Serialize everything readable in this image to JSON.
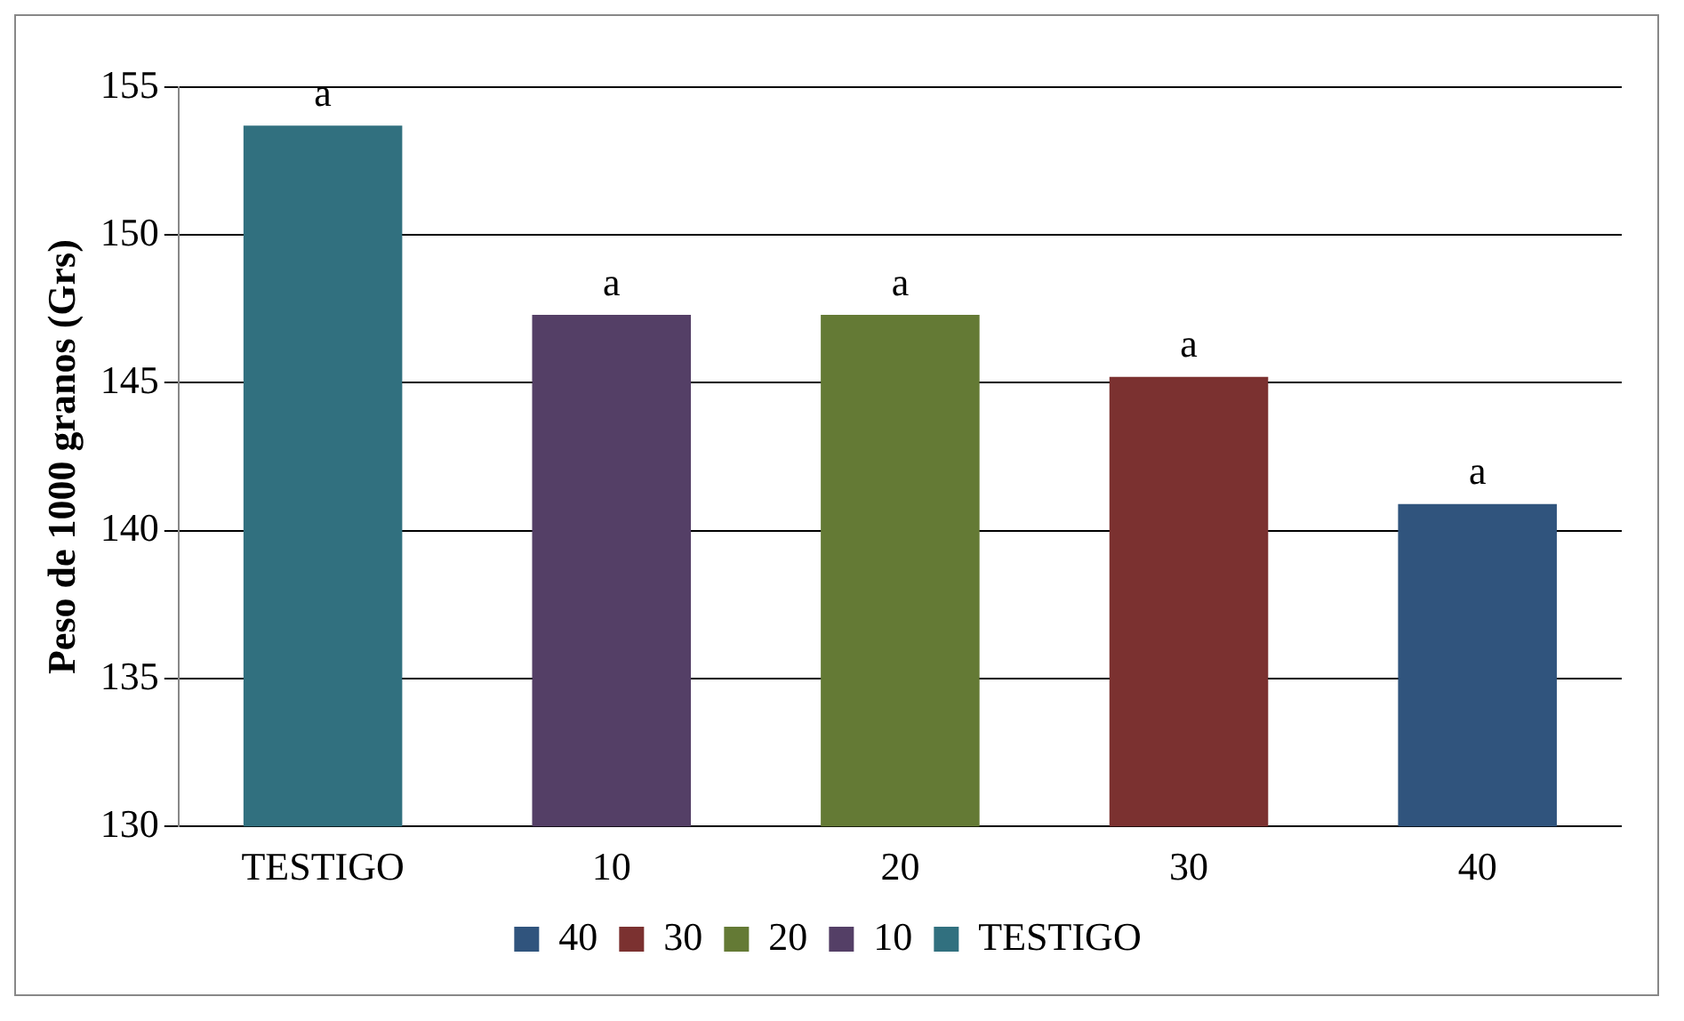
{
  "chart_data": {
    "type": "bar",
    "ylabel": "Peso de 1000 granos (Grs)",
    "categories": [
      "TESTIGO",
      "10",
      "20",
      "30",
      "40"
    ],
    "series": [
      {
        "name": "40",
        "color": "#30547d",
        "values": [
          null,
          null,
          null,
          null,
          140.9
        ]
      },
      {
        "name": "30",
        "color": "#7b3130",
        "values": [
          null,
          null,
          null,
          145.2,
          null
        ]
      },
      {
        "name": "20",
        "color": "#647a35",
        "values": [
          null,
          null,
          147.3,
          null,
          null
        ]
      },
      {
        "name": "10",
        "color": "#543f66",
        "values": [
          null,
          147.3,
          null,
          null,
          null
        ]
      },
      {
        "name": "TESTIGO",
        "color": "#31707f",
        "values": [
          153.7,
          null,
          null,
          null,
          null
        ]
      }
    ],
    "ylim": [
      130,
      155
    ],
    "yticks": [
      130,
      135,
      140,
      145,
      150,
      155
    ],
    "grid": "y",
    "legend": "bottom",
    "annotations": [
      {
        "text": "a",
        "x": "TESTIGO",
        "y": 153.7
      },
      {
        "text": "a",
        "x": "10",
        "y": 147.3
      },
      {
        "text": "a",
        "x": "20",
        "y": 147.3
      },
      {
        "text": "a",
        "x": "30",
        "y": 145.2
      },
      {
        "text": "a",
        "x": "40",
        "y": 140.9
      }
    ]
  }
}
